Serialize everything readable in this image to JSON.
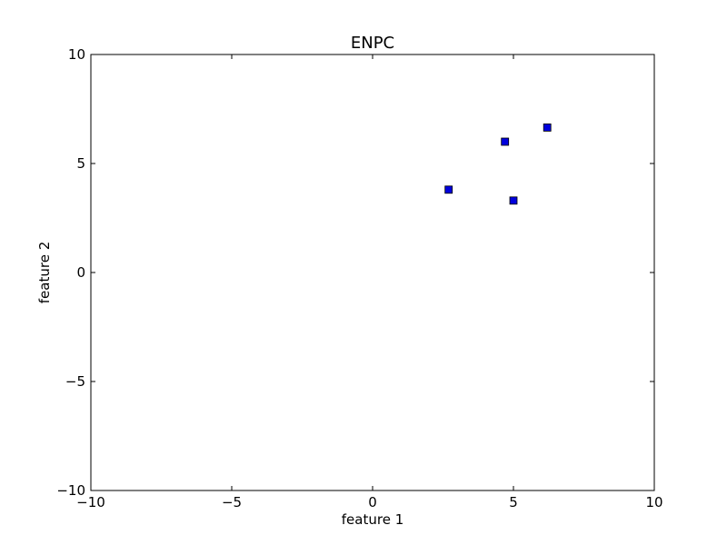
{
  "chart_data": {
    "type": "scatter",
    "title": "ENPC",
    "xlabel": "feature 1",
    "ylabel": "feature 2",
    "xlim": [
      -10,
      10
    ],
    "ylim": [
      -10,
      10
    ],
    "x_ticks": [
      -10,
      -5,
      0,
      5,
      10
    ],
    "y_ticks": [
      -10,
      -5,
      0,
      5,
      10
    ],
    "x_tick_labels": [
      "−10",
      "−5",
      "0",
      "5",
      "10"
    ],
    "y_tick_labels": [
      "−10",
      "−5",
      "0",
      "5",
      "10"
    ],
    "grid": false,
    "marker": "square",
    "color": "#0000dd",
    "points": [
      {
        "x": 2.7,
        "y": 3.8
      },
      {
        "x": 4.7,
        "y": 6.0
      },
      {
        "x": 5.0,
        "y": 3.3
      },
      {
        "x": 6.2,
        "y": 6.65
      }
    ]
  }
}
